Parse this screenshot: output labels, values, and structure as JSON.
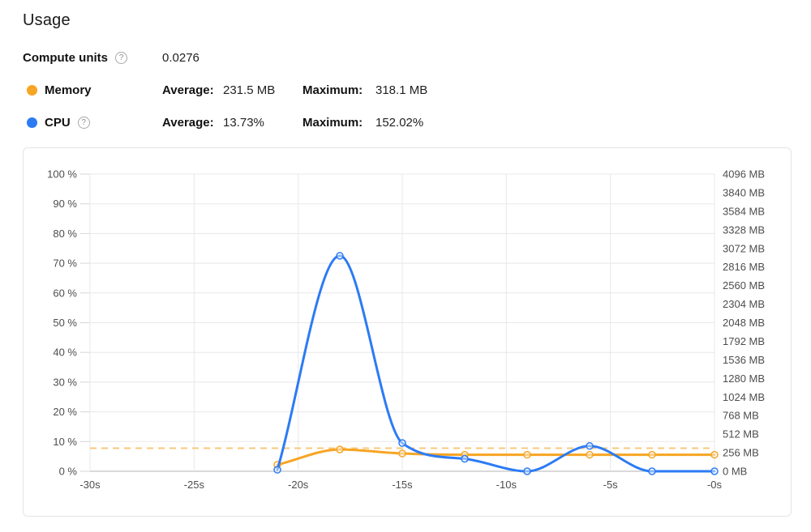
{
  "page": {
    "title": "Usage"
  },
  "stats": {
    "compute": {
      "label": "Compute units",
      "value": "0.0276"
    },
    "memory": {
      "label": "Memory",
      "avg_label": "Average:",
      "avg_value": "231.5 MB",
      "max_label": "Maximum:",
      "max_value": "318.1 MB"
    },
    "cpu": {
      "label": "CPU",
      "avg_label": "Average:",
      "avg_value": "13.73%",
      "max_label": "Maximum:",
      "max_value": "152.02%"
    }
  },
  "icons": {
    "compute_help": "?",
    "cpu_help": "?"
  },
  "colors": {
    "memory": "#f7a524",
    "cpu": "#2c7bf4",
    "memory_reference": "#f9c87c",
    "grid": "#e8e8e8",
    "baseline": "#b3b3b3",
    "tick": "#d6d6d6",
    "axis_label": "#4d4d4d",
    "marker_fill": "#ffffff"
  },
  "chart_data": {
    "type": "line",
    "x": [
      -21,
      -18,
      -15,
      -12,
      -9,
      -6,
      -3,
      0
    ],
    "x_axis": {
      "min": -30,
      "max": 0,
      "step": 5,
      "labels": [
        "-30s",
        "-25s",
        "-20s",
        "-15s",
        "-10s",
        "-5s",
        "-0s"
      ]
    },
    "left_axis": {
      "name": "CPU percent",
      "min": 0,
      "max": 100,
      "step": 10,
      "labels_top_to_bottom": [
        "100 %",
        "90 %",
        "80 %",
        "70 %",
        "60 %",
        "50 %",
        "40 %",
        "30 %",
        "20 %",
        "10 %",
        "0 %"
      ]
    },
    "right_axis": {
      "name": "Memory MB",
      "min": 0,
      "max": 4096,
      "step": 256,
      "labels_top_to_bottom": [
        "4096 MB",
        "3840 MB",
        "3584 MB",
        "3328 MB",
        "3072 MB",
        "2816 MB",
        "2560 MB",
        "2304 MB",
        "2048 MB",
        "1792 MB",
        "1536 MB",
        "1280 MB",
        "1024 MB",
        "768 MB",
        "512 MB",
        "256 MB",
        "0 MB"
      ]
    },
    "series": [
      {
        "name": "Memory",
        "axis": "right",
        "unit": "MB",
        "color": "#f7a524",
        "values": [
          90,
          300,
          245,
          228,
          228,
          228,
          228,
          228
        ]
      },
      {
        "name": "CPU",
        "axis": "left",
        "unit": "%",
        "color": "#2c7bf4",
        "values": [
          0.5,
          72.5,
          9.5,
          4.2,
          0,
          8.5,
          0,
          0
        ]
      }
    ],
    "reference_line": {
      "series": "Memory",
      "label": "Maximum",
      "value_mb": 318.1,
      "style": "dashed",
      "color": "#f9c87c"
    },
    "legend_position": "top-left-rows",
    "grid": true
  }
}
